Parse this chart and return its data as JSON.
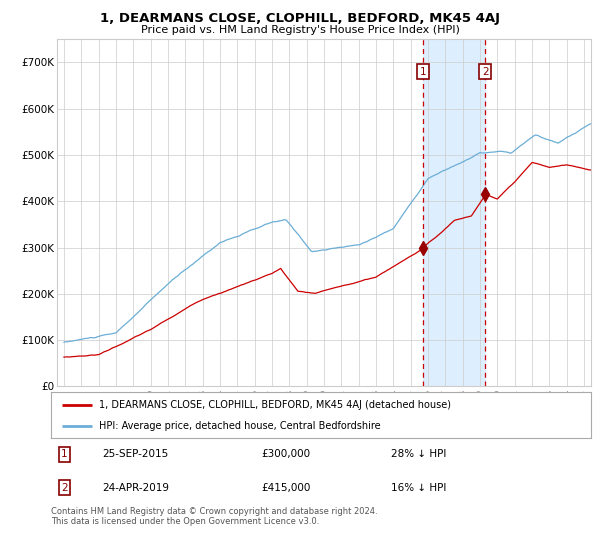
{
  "title": "1, DEARMANS CLOSE, CLOPHILL, BEDFORD, MK45 4AJ",
  "subtitle": "Price paid vs. HM Land Registry's House Price Index (HPI)",
  "hpi_label": "HPI: Average price, detached house, Central Bedfordshire",
  "price_label": "1, DEARMANS CLOSE, CLOPHILL, BEDFORD, MK45 4AJ (detached house)",
  "sale1_date": "25-SEP-2015",
  "sale1_price": 300000,
  "sale1_note": "28% ↓ HPI",
  "sale2_date": "24-APR-2019",
  "sale2_price": 415000,
  "sale2_note": "16% ↓ HPI",
  "sale1_x": 2015.73,
  "sale2_x": 2019.31,
  "footer": "Contains HM Land Registry data © Crown copyright and database right 2024.\nThis data is licensed under the Open Government Licence v3.0.",
  "hpi_color": "#6baed6",
  "price_color": "#cc0000",
  "highlight_color": "#ddeeff",
  "background_color": "#ffffff",
  "grid_color": "#cccccc",
  "ylim": [
    0,
    750000
  ],
  "xlim_start": 1994.6,
  "xlim_end": 2025.4
}
